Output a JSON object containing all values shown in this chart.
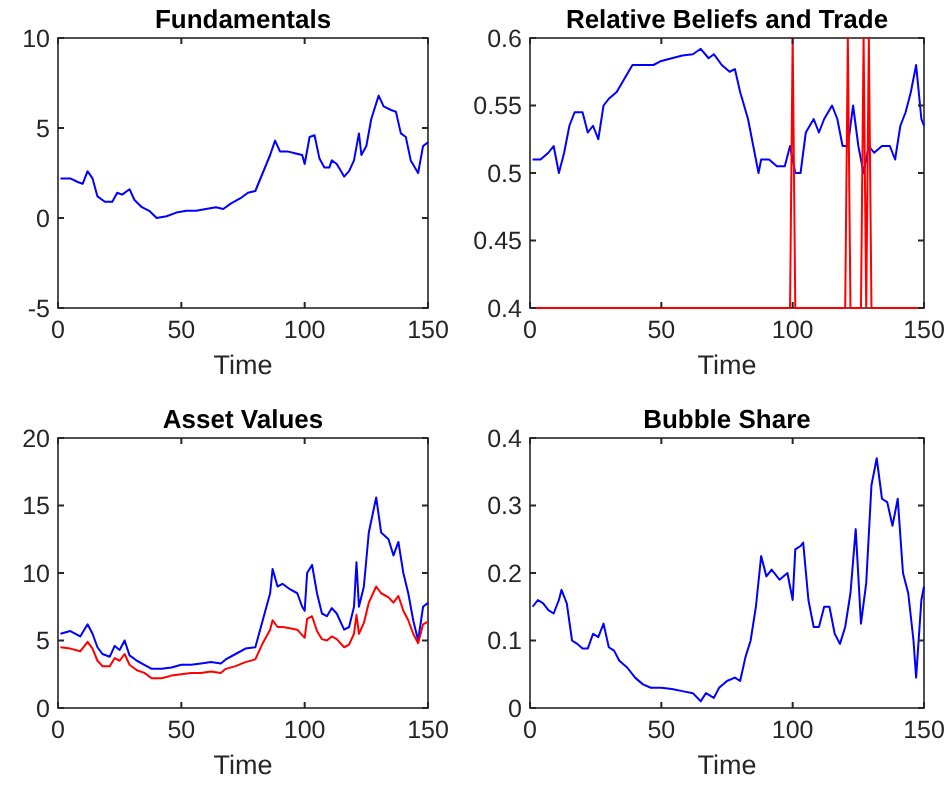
{
  "chart_data": [
    {
      "type": "line",
      "title": "Fundamentals",
      "xlabel": "Time",
      "xlim": [
        0,
        150
      ],
      "xticks": [
        0,
        50,
        100,
        150
      ],
      "ylim": [
        -5,
        10
      ],
      "yticks": [
        -5,
        0,
        5,
        10
      ],
      "grid": false,
      "series": [
        {
          "color": "#0000ff",
          "x": [
            1,
            5,
            8,
            10,
            12,
            14,
            16,
            19,
            22,
            24,
            26,
            29,
            31,
            34,
            37,
            40,
            44,
            48,
            52,
            56,
            60,
            64,
            67,
            70,
            74,
            77,
            80,
            83,
            86,
            88,
            90,
            93,
            96,
            99,
            100,
            102,
            104,
            106,
            108,
            110,
            111,
            113,
            116,
            118,
            120,
            122,
            123,
            125,
            127,
            130,
            132,
            135,
            137,
            139,
            141,
            143,
            146,
            148,
            150
          ],
          "values": [
            2.2,
            2.2,
            2.0,
            1.9,
            2.6,
            2.2,
            1.2,
            0.9,
            0.9,
            1.4,
            1.3,
            1.6,
            1.0,
            0.6,
            0.4,
            0.0,
            0.1,
            0.3,
            0.4,
            0.4,
            0.5,
            0.6,
            0.5,
            0.8,
            1.1,
            1.4,
            1.5,
            2.5,
            3.5,
            4.3,
            3.7,
            3.7,
            3.6,
            3.5,
            3.0,
            4.5,
            4.6,
            3.3,
            2.8,
            2.8,
            3.2,
            3.0,
            2.3,
            2.6,
            3.2,
            4.7,
            3.5,
            4.0,
            5.5,
            6.8,
            6.2,
            6.0,
            5.9,
            4.7,
            4.5,
            3.2,
            2.5,
            4.0,
            4.2
          ]
        }
      ]
    },
    {
      "type": "line",
      "title": "Relative Beliefs and Trade",
      "xlabel": "Time",
      "xlim": [
        0,
        150
      ],
      "xticks": [
        0,
        50,
        100,
        150
      ],
      "ylim": [
        0.4,
        0.6
      ],
      "yticks": [
        0.4,
        0.45,
        0.5,
        0.55,
        0.6
      ],
      "grid": false,
      "series": [
        {
          "color": "#0000ff",
          "x": [
            1,
            4,
            7,
            9,
            11,
            13,
            15,
            17,
            20,
            22,
            24,
            26,
            28,
            30,
            33,
            36,
            39,
            43,
            47,
            50,
            54,
            58,
            62,
            65,
            68,
            70,
            73,
            76,
            78,
            80,
            83,
            86,
            87,
            88,
            91,
            94,
            97,
            99,
            101,
            103,
            105,
            108,
            110,
            112,
            115,
            117,
            119,
            121,
            123,
            125,
            127,
            129,
            131,
            134,
            137,
            139,
            141,
            143,
            145,
            147,
            148,
            149,
            150
          ],
          "values": [
            0.51,
            0.51,
            0.515,
            0.52,
            0.5,
            0.515,
            0.535,
            0.545,
            0.545,
            0.53,
            0.535,
            0.525,
            0.55,
            0.555,
            0.56,
            0.57,
            0.58,
            0.58,
            0.58,
            0.583,
            0.585,
            0.587,
            0.588,
            0.592,
            0.585,
            0.588,
            0.58,
            0.575,
            0.577,
            0.56,
            0.54,
            0.51,
            0.5,
            0.51,
            0.51,
            0.505,
            0.505,
            0.52,
            0.5,
            0.5,
            0.53,
            0.54,
            0.53,
            0.54,
            0.55,
            0.54,
            0.52,
            0.52,
            0.55,
            0.52,
            0.5,
            0.52,
            0.515,
            0.52,
            0.52,
            0.51,
            0.535,
            0.545,
            0.56,
            0.58,
            0.56,
            0.54,
            0.535
          ]
        },
        {
          "color": "#ff0000",
          "x": [
            0,
            99,
            100,
            101,
            120,
            121,
            122,
            126,
            127,
            128,
            129,
            130,
            150
          ],
          "values": [
            0.4,
            0.4,
            0.6,
            0.4,
            0.4,
            0.6,
            0.4,
            0.4,
            0.6,
            0.4,
            0.6,
            0.4,
            0.4
          ]
        }
      ]
    },
    {
      "type": "line",
      "title": "Asset Values",
      "xlabel": "Time",
      "xlim": [
        0,
        150
      ],
      "xticks": [
        0,
        50,
        100,
        150
      ],
      "ylim": [
        0,
        20
      ],
      "yticks": [
        0,
        5,
        10,
        15,
        20
      ],
      "grid": false,
      "series": [
        {
          "color": "#0000ff",
          "x": [
            1,
            5,
            9,
            12,
            14,
            16,
            18,
            21,
            23,
            25,
            27,
            29,
            32,
            35,
            38,
            42,
            46,
            50,
            54,
            58,
            62,
            66,
            68,
            72,
            76,
            80,
            83,
            86,
            87,
            89,
            91,
            94,
            97,
            99,
            100,
            101,
            103,
            105,
            107,
            109,
            111,
            113,
            116,
            118,
            120,
            121,
            122,
            124,
            126,
            129,
            131,
            134,
            136,
            138,
            140,
            142,
            144,
            146,
            148,
            150
          ],
          "values": [
            5.5,
            5.7,
            5.3,
            6.2,
            5.5,
            4.5,
            4.0,
            3.8,
            4.6,
            4.3,
            5.0,
            3.9,
            3.5,
            3.2,
            2.9,
            2.9,
            3.0,
            3.2,
            3.2,
            3.3,
            3.4,
            3.3,
            3.6,
            4.0,
            4.4,
            4.5,
            6.5,
            8.5,
            10.3,
            9.0,
            9.2,
            8.8,
            8.5,
            7.5,
            7.2,
            10.0,
            10.6,
            8.5,
            7.0,
            6.8,
            7.4,
            7.0,
            5.8,
            6.0,
            7.5,
            10.8,
            7.5,
            9.0,
            13,
            15.6,
            13,
            12.5,
            11.3,
            12.3,
            10,
            8.5,
            6.5,
            5.0,
            7.5,
            7.8
          ]
        },
        {
          "color": "#ff0000",
          "x": [
            1,
            5,
            9,
            12,
            14,
            16,
            18,
            21,
            23,
            25,
            27,
            29,
            32,
            35,
            38,
            42,
            46,
            50,
            54,
            58,
            62,
            66,
            68,
            72,
            76,
            80,
            83,
            86,
            87,
            89,
            91,
            94,
            97,
            99,
            100,
            101,
            103,
            105,
            107,
            109,
            111,
            113,
            116,
            118,
            120,
            121,
            122,
            124,
            126,
            129,
            131,
            134,
            136,
            138,
            140,
            142,
            144,
            146,
            148,
            150
          ],
          "values": [
            4.5,
            4.4,
            4.2,
            4.9,
            4.4,
            3.5,
            3.1,
            3.1,
            3.7,
            3.5,
            4.0,
            3.2,
            2.8,
            2.6,
            2.2,
            2.2,
            2.4,
            2.5,
            2.6,
            2.6,
            2.7,
            2.6,
            2.9,
            3.1,
            3.4,
            3.6,
            4.8,
            5.8,
            6.5,
            6.0,
            6.0,
            5.9,
            5.8,
            5.4,
            5.2,
            6.6,
            6.8,
            5.7,
            5.1,
            5.0,
            5.3,
            5.1,
            4.5,
            4.7,
            5.5,
            6.9,
            5.5,
            6.3,
            7.8,
            9.0,
            8.5,
            8.2,
            7.8,
            8.3,
            7.2,
            6.5,
            5.5,
            4.8,
            6.2,
            6.4
          ]
        }
      ]
    },
    {
      "type": "line",
      "title": "Bubble Share",
      "xlabel": "Time",
      "xlim": [
        0,
        150
      ],
      "xticks": [
        0,
        50,
        100,
        150
      ],
      "ylim": [
        0,
        0.4
      ],
      "yticks": [
        0,
        0.1,
        0.2,
        0.3,
        0.4
      ],
      "grid": false,
      "series": [
        {
          "color": "#0000ff",
          "x": [
            1,
            3,
            5,
            7,
            9,
            11,
            12,
            14,
            16,
            18,
            20,
            22,
            24,
            26,
            28,
            30,
            32,
            34,
            37,
            40,
            43,
            46,
            50,
            54,
            58,
            62,
            65,
            67,
            70,
            72,
            75,
            78,
            80,
            82,
            84,
            86,
            88,
            90,
            92,
            95,
            98,
            100,
            101,
            103,
            104,
            106,
            108,
            110,
            112,
            114,
            116,
            118,
            120,
            122,
            124,
            126,
            128,
            130,
            132,
            134,
            136,
            138,
            140,
            142,
            144,
            146,
            147,
            149,
            150
          ],
          "values": [
            0.15,
            0.16,
            0.155,
            0.145,
            0.14,
            0.16,
            0.175,
            0.155,
            0.1,
            0.095,
            0.088,
            0.088,
            0.11,
            0.105,
            0.125,
            0.09,
            0.085,
            0.07,
            0.06,
            0.045,
            0.035,
            0.03,
            0.03,
            0.028,
            0.025,
            0.022,
            0.01,
            0.022,
            0.015,
            0.03,
            0.04,
            0.045,
            0.04,
            0.075,
            0.1,
            0.15,
            0.225,
            0.195,
            0.205,
            0.19,
            0.2,
            0.16,
            0.235,
            0.24,
            0.245,
            0.16,
            0.12,
            0.12,
            0.15,
            0.15,
            0.11,
            0.095,
            0.12,
            0.17,
            0.265,
            0.125,
            0.185,
            0.33,
            0.37,
            0.31,
            0.305,
            0.27,
            0.31,
            0.2,
            0.17,
            0.1,
            0.045,
            0.16,
            0.18
          ]
        }
      ]
    }
  ]
}
